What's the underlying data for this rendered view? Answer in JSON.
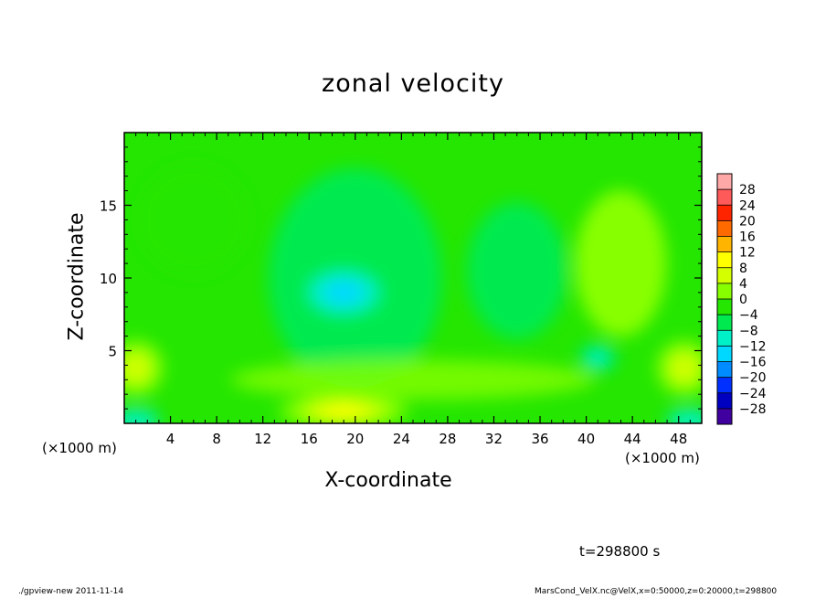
{
  "chart_data": {
    "type": "heatmap",
    "title": "zonal velocity",
    "xlabel": "X-coordinate",
    "ylabel": "Z-coordinate",
    "x_unit": "(×1000 m)",
    "xlim": [
      0,
      50
    ],
    "ylim": [
      0,
      20
    ],
    "x_ticks": [
      "4",
      "8",
      "12",
      "16",
      "20",
      "24",
      "28",
      "32",
      "36",
      "40",
      "44",
      "48"
    ],
    "y_ticks": [
      "5",
      "10",
      "15"
    ],
    "colorbar": {
      "labels": [
        "28",
        "24",
        "20",
        "16",
        "12",
        "8",
        "4",
        "0",
        "−4",
        "−8",
        "−12",
        "−16",
        "−20",
        "−24",
        "−28"
      ],
      "colors": [
        "#ffa8a8",
        "#ff5a5a",
        "#ff2400",
        "#ff6a00",
        "#ffb400",
        "#ffff00",
        "#d4ff00",
        "#88ff00",
        "#24e600",
        "#00ea50",
        "#00f0c8",
        "#00d8ff",
        "#008cff",
        "#0030ff",
        "#0000c0",
        "#4000a0"
      ]
    },
    "field_features": [
      {
        "kind": "minimum",
        "x": 19,
        "z": 9,
        "value": -12
      },
      {
        "kind": "maximum",
        "x": 19,
        "z": 0.8,
        "value": 12
      },
      {
        "kind": "minimum",
        "x": 34,
        "z": 10.5,
        "value": -6
      },
      {
        "kind": "maximum",
        "x": 43,
        "z": 11,
        "value": 4
      },
      {
        "kind": "minimum",
        "x": 41,
        "z": 4.5,
        "value": -8
      },
      {
        "kind": "minimum",
        "x": 1,
        "z": 0.2,
        "value": -10
      },
      {
        "kind": "minimum",
        "x": 49,
        "z": 0.2,
        "value": -10
      },
      {
        "kind": "maximum",
        "x": 1,
        "z": 3.8,
        "value": 6
      },
      {
        "kind": "maximum",
        "x": 48.5,
        "z": 3.8,
        "value": 6
      }
    ]
  },
  "annotations": {
    "unit_left": "(×1000 m)",
    "unit_right": "(×1000 m)",
    "time": "t=298800 s",
    "footer_left": "./gpview-new  2011-11-14",
    "footer_right": "MarsCond_VelX.nc@VelX,x=0:50000,z=0:20000,t=298800"
  }
}
